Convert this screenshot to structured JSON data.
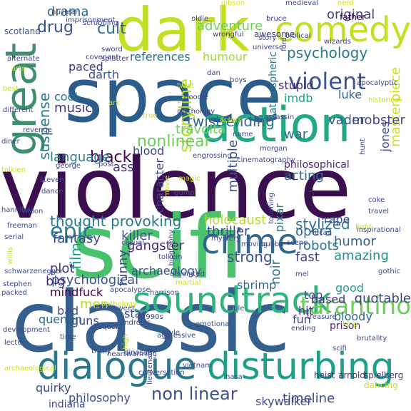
{
  "words": [
    {
      "text": "violence",
      "color": "#3b0f4f"
    },
    {
      "text": "space",
      "color": "#2c5c8a"
    },
    {
      "text": "classic",
      "color": "#355f8d"
    },
    {
      "text": "scifi",
      "color": "#4ac16d"
    },
    {
      "text": "dark",
      "color": "#c2df23"
    },
    {
      "text": "action",
      "color": "#22a884"
    },
    {
      "text": "great",
      "color": "#3f8f6e"
    },
    {
      "text": "comedy",
      "color": "#c2df23"
    },
    {
      "text": "soundtrack",
      "color": "#2fb47c"
    },
    {
      "text": "dialogue",
      "color": "#2a788e"
    },
    {
      "text": "disturbing",
      "color": "#1f9e89"
    },
    {
      "text": "crime",
      "color": "#31688e"
    },
    {
      "text": "violent",
      "color": "#39568c"
    },
    {
      "text": "twist ending",
      "color": "#31688e"
    },
    {
      "text": "tarantino",
      "color": "#6ccd5a"
    },
    {
      "text": "thought provoking",
      "color": "#2a788e"
    },
    {
      "text": "storyline",
      "color": "#b5de2b"
    },
    {
      "text": "nonlinear",
      "color": "#6ccd5a"
    },
    {
      "text": "epic",
      "color": "#287c8e"
    },
    {
      "text": "cult",
      "color": "#31688e"
    },
    {
      "text": "drug",
      "color": "#39568c"
    },
    {
      "text": "psychology",
      "color": "#2a788e"
    },
    {
      "text": "original",
      "color": "#424086"
    },
    {
      "text": "adventure",
      "color": "#6ece58"
    },
    {
      "text": "suspense",
      "color": "#287c8e"
    },
    {
      "text": "black",
      "color": "#440154"
    },
    {
      "text": "language",
      "color": "#2a788e"
    },
    {
      "text": "music",
      "color": "#453781"
    },
    {
      "text": "cool",
      "color": "#2d708e"
    },
    {
      "text": "references",
      "color": "#2d708e"
    },
    {
      "text": "humour",
      "color": "#9fda3a"
    },
    {
      "text": "paced",
      "color": "#443983"
    },
    {
      "text": "darth",
      "color": "#3b528b"
    },
    {
      "text": "atmospheric",
      "color": "#2a788e"
    },
    {
      "text": "stupid",
      "color": "#482878"
    },
    {
      "text": "imdb",
      "color": "#1fa088"
    },
    {
      "text": "luke",
      "color": "#33638d"
    },
    {
      "text": "masterpiece",
      "color": "#c8e020"
    },
    {
      "text": "vader",
      "color": "#3b528b"
    },
    {
      "text": "mobster",
      "color": "#3e4989"
    },
    {
      "text": "war",
      "color": "#2d708e"
    },
    {
      "text": "travolta",
      "color": "#6ece58"
    },
    {
      "text": "jones",
      "color": "#404688"
    },
    {
      "text": "multiple",
      "color": "#3b528b"
    },
    {
      "text": "character",
      "color": "#414487"
    },
    {
      "text": "blood",
      "color": "#3e4989"
    },
    {
      "text": "philosophical",
      "color": "#482475"
    },
    {
      "text": "acting",
      "color": "#31688e"
    },
    {
      "text": "ass",
      "color": "#46337e"
    },
    {
      "text": "holocaust",
      "color": "#b5de2b"
    },
    {
      "text": "stylized",
      "color": "#2a788e"
    },
    {
      "text": "thriller",
      "color": "#3e4989"
    },
    {
      "text": "fantasy",
      "color": "#3e4989"
    },
    {
      "text": "rape",
      "color": "#3b528b"
    },
    {
      "text": "pixar",
      "color": "#27808e"
    },
    {
      "text": "film",
      "color": "#1fa088"
    },
    {
      "text": "humor",
      "color": "#33638d"
    },
    {
      "text": "killer",
      "color": "#3b528b"
    },
    {
      "text": "opera",
      "color": "#31688e"
    },
    {
      "text": "robots",
      "color": "#2a788e"
    },
    {
      "text": "gangster",
      "color": "#482878"
    },
    {
      "text": "plot",
      "color": "#46337e"
    },
    {
      "text": "funny",
      "color": "#3e4989"
    },
    {
      "text": "fast",
      "color": "#3e4989"
    },
    {
      "text": "strong",
      "color": "#3b528b"
    },
    {
      "text": "amazing",
      "color": "#21918c"
    },
    {
      "text": "psychological",
      "color": "#3b528b"
    },
    {
      "text": "archaeology",
      "color": "#3b528b"
    },
    {
      "text": "big",
      "color": "#46337e"
    },
    {
      "text": "noir",
      "color": "#2c728e"
    },
    {
      "text": "shrimp",
      "color": "#31688e"
    },
    {
      "text": "good",
      "color": "#1f9e89"
    },
    {
      "text": "top",
      "color": "#3e4989"
    },
    {
      "text": "quotable",
      "color": "#3e4989"
    },
    {
      "text": "mindfuck",
      "color": "#440154"
    },
    {
      "text": "based",
      "color": "#46337e"
    },
    {
      "text": "hit",
      "color": "#482878"
    },
    {
      "text": "men",
      "color": "#b5de2b"
    },
    {
      "text": "star",
      "color": "#3e4989"
    },
    {
      "text": "bad",
      "color": "#3b528b"
    },
    {
      "text": "guns",
      "color": "#3e4989"
    },
    {
      "text": "fun",
      "color": "#3e4989"
    },
    {
      "text": "bloody",
      "color": "#33638d"
    },
    {
      "text": "quentin",
      "color": "#33638d"
    },
    {
      "text": "prison",
      "color": "#482878"
    },
    {
      "text": "non linear",
      "color": "#3b528b"
    },
    {
      "text": "quirky",
      "color": "#3e4989"
    },
    {
      "text": "philosophy",
      "color": "#3b528b"
    },
    {
      "text": "timeline",
      "color": "#3e4989"
    },
    {
      "text": "skywalker",
      "color": "#3e4989"
    },
    {
      "text": "indiana",
      "color": "#3e4989"
    },
    {
      "text": "spielberg",
      "color": "#46337e"
    },
    {
      "text": "dancing",
      "color": "#c8e020"
    },
    {
      "text": "heist",
      "color": "#482878"
    },
    {
      "text": "arnold",
      "color": "#46337e"
    },
    {
      "text": "drama",
      "color": "#31688e"
    },
    {
      "text": "gibson",
      "color": "#dde318"
    },
    {
      "text": "medieval",
      "color": "#3e4989"
    },
    {
      "text": "nerd",
      "color": "#d8e219"
    },
    {
      "text": "nuclear",
      "color": "#46337e"
    },
    {
      "text": "oldie",
      "color": "#3e4989"
    },
    {
      "text": "bruce",
      "color": "#46337e"
    },
    {
      "text": "father",
      "color": "#440154"
    },
    {
      "text": "imprisonment",
      "color": "#3e4989"
    },
    {
      "text": "scotland",
      "color": "#3b528b"
    },
    {
      "text": "scrubbing",
      "color": "#3e4989"
    },
    {
      "text": "wrongful",
      "color": "#3e4989"
    },
    {
      "text": "awesome",
      "color": "#3e4989"
    },
    {
      "text": "story",
      "color": "#3e4989"
    },
    {
      "text": "biblical",
      "color": "#3e4989"
    },
    {
      "text": "wizards",
      "color": "#3e4989"
    },
    {
      "text": "universe",
      "color": "#3e4989"
    },
    {
      "text": "ford",
      "color": "#3e4989"
    },
    {
      "text": "sword",
      "color": "#3e4989"
    },
    {
      "text": "covenant",
      "color": "#3e4989"
    },
    {
      "text": "splatter",
      "color": "#46337e"
    },
    {
      "text": "alternate",
      "color": "#3e4989"
    },
    {
      "text": "dan",
      "color": "#3e4989"
    },
    {
      "text": "apocalyptic",
      "color": "#3e4989"
    },
    {
      "text": "boys",
      "color": "#3e4989"
    },
    {
      "text": "arts",
      "color": "#c8e020"
    },
    {
      "text": "twist",
      "color": "#dde318"
    },
    {
      "text": "ark",
      "color": "#c8e020"
    },
    {
      "text": "goodie",
      "color": "#3e4989"
    },
    {
      "text": "best",
      "color": "#c8e020"
    },
    {
      "text": "historical",
      "color": "#c8e020"
    },
    {
      "text": "different",
      "color": "#3e4989"
    },
    {
      "text": "revenge",
      "color": "#3e4989"
    },
    {
      "text": "true",
      "color": "#c8e020"
    },
    {
      "text": "mythology",
      "color": "#3e4989"
    },
    {
      "text": "actors",
      "color": "#c8e020"
    },
    {
      "text": "assassin",
      "color": "#3e4989"
    },
    {
      "text": "name",
      "color": "#3e4989"
    },
    {
      "text": "morgan",
      "color": "#3e4989"
    },
    {
      "text": "hunt",
      "color": "#3e4989"
    },
    {
      "text": "diner",
      "color": "#3e4989"
    },
    {
      "text": "engrossing",
      "color": "#3e4989"
    },
    {
      "text": "george",
      "color": "#3e4989"
    },
    {
      "text": "post",
      "color": "#3e4989"
    },
    {
      "text": "cinematography",
      "color": "#3e4989"
    },
    {
      "text": "tolkien",
      "color": "#c8e020"
    },
    {
      "text": "steven",
      "color": "#3e4989"
    },
    {
      "text": "movie",
      "color": "#c8e020"
    },
    {
      "text": "magic",
      "color": "#c8e020"
    },
    {
      "text": "dance",
      "color": "#3e4989"
    },
    {
      "text": "gump",
      "color": "#3e4989"
    },
    {
      "text": "touching",
      "color": "#3e4989"
    },
    {
      "text": "coke",
      "color": "#3e4989"
    },
    {
      "text": "travel",
      "color": "#3e4989"
    },
    {
      "text": "hannibal",
      "color": "#3e4989"
    },
    {
      "text": "moon",
      "color": "#3e4989"
    },
    {
      "text": "freeman",
      "color": "#3e4989"
    },
    {
      "text": "fight",
      "color": "#c8e020"
    },
    {
      "text": "serial",
      "color": "#3e4989"
    },
    {
      "text": "casual",
      "color": "#3e4989"
    },
    {
      "text": "bubba",
      "color": "#3e4989"
    },
    {
      "text": "inspirational",
      "color": "#3e4989"
    },
    {
      "text": "lucas",
      "color": "#3e4989"
    },
    {
      "text": "biography",
      "color": "#3e4989"
    },
    {
      "text": "mystery",
      "color": "#3e4989"
    },
    {
      "text": "moving",
      "color": "#3e4989"
    },
    {
      "text": "tolkein",
      "color": "#3e4989"
    },
    {
      "text": "willis",
      "color": "#c8e020"
    },
    {
      "text": "scene",
      "color": "#3e4989"
    },
    {
      "text": "schwarzenegger",
      "color": "#3e4989"
    },
    {
      "text": "disjointed",
      "color": "#3e4989"
    },
    {
      "text": "mel",
      "color": "#3e4989"
    },
    {
      "text": "gothic",
      "color": "#3e4989"
    },
    {
      "text": "stephen",
      "color": "#3e4989"
    },
    {
      "text": "apocalypse",
      "color": "#3e4989"
    },
    {
      "text": "martial",
      "color": "#c8e020"
    },
    {
      "text": "packed",
      "color": "#3e4989"
    },
    {
      "text": "harrison",
      "color": "#3e4989"
    },
    {
      "text": "anthology",
      "color": "#c8e020"
    },
    {
      "text": "bittersweet",
      "color": "#3e4989"
    },
    {
      "text": "androids",
      "color": "#3e4989"
    },
    {
      "text": "1990s",
      "color": "#3e4989"
    },
    {
      "text": "treasure",
      "color": "#3e4989"
    },
    {
      "text": "sequel",
      "color": "#3e4989"
    },
    {
      "text": "development",
      "color": "#3e4989"
    },
    {
      "text": "lector",
      "color": "#3e4989"
    },
    {
      "text": "emotional",
      "color": "#3e4989"
    },
    {
      "text": "bible",
      "color": "#3e4989"
    },
    {
      "text": "aggressive",
      "color": "#3e4989"
    },
    {
      "text": "time",
      "color": "#3e4989"
    },
    {
      "text": "tricky",
      "color": "#3e4989"
    },
    {
      "text": "high",
      "color": "#c8e020"
    },
    {
      "text": "dinosaur",
      "color": "#3e4989"
    },
    {
      "text": "ending",
      "color": "#3e4989"
    },
    {
      "text": "style",
      "color": "#3e4989"
    },
    {
      "text": "heartwarming",
      "color": "#3e4989"
    },
    {
      "text": "scifi",
      "color": "#3e4989"
    },
    {
      "text": "king",
      "color": "#c8e020"
    },
    {
      "text": "brutality",
      "color": "#3e4989"
    },
    {
      "text": "archaeological",
      "color": "#c8e020"
    },
    {
      "text": "lieutenant",
      "color": "#3e4989"
    },
    {
      "text": "conversation",
      "color": "#3e4989"
    },
    {
      "text": "vietnam",
      "color": "#3e4989"
    },
    {
      "text": "nasa",
      "color": "#3e4989"
    }
  ]
}
